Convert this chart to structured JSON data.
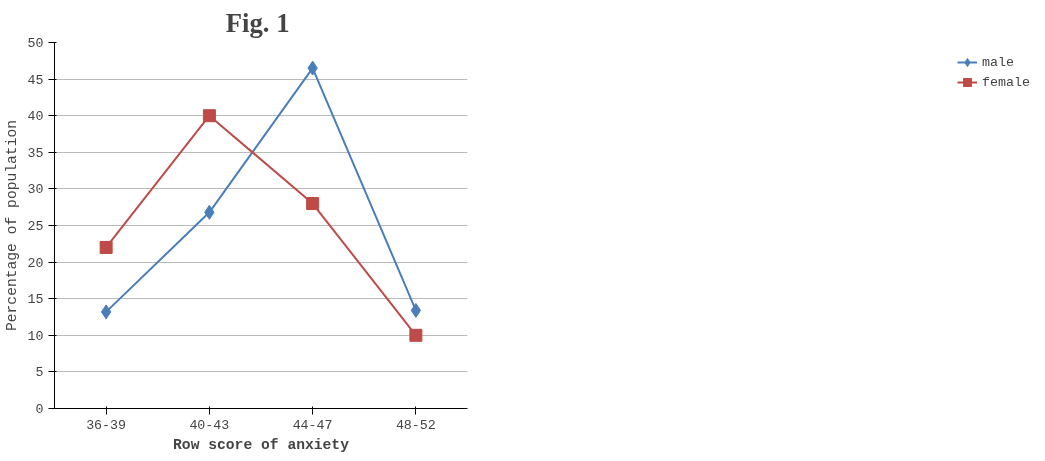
{
  "chart_data": {
    "type": "line",
    "title": "Fig.  1",
    "xlabel": "Row score of anxiety",
    "ylabel": "Percentage of population",
    "categories": [
      "36-39",
      "40-43",
      "44-47",
      "48-52"
    ],
    "series": [
      {
        "name": "male",
        "color": "#4a7ebb",
        "marker": "diamond",
        "values": [
          13.2,
          26.8,
          46.5,
          13.4
        ]
      },
      {
        "name": "female",
        "color": "#be4b48",
        "marker": "square",
        "values": [
          22,
          40,
          28,
          10
        ]
      }
    ],
    "ylim": [
      0,
      50
    ],
    "yticks": [
      0,
      5,
      10,
      15,
      20,
      25,
      30,
      35,
      40,
      45,
      50
    ],
    "grid": "y",
    "legend": "right"
  }
}
